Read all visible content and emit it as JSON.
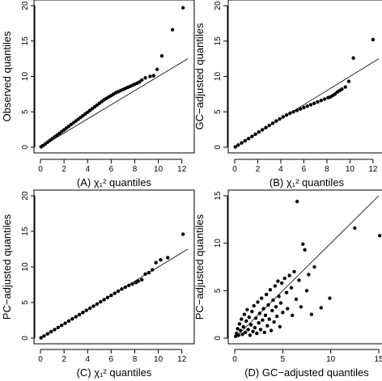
{
  "chart_data": [
    {
      "panel": "A",
      "type": "scatter",
      "xlabel": "(A) χ₁² quantiles",
      "ylabel": "Observed quantiles",
      "xlim": [
        0,
        12.5
      ],
      "ylim": [
        0,
        20
      ],
      "xticks": [
        0,
        2,
        4,
        6,
        8,
        10,
        12
      ],
      "yticks": [
        0,
        5,
        10,
        15,
        20
      ],
      "reference_line": {
        "slope": 1,
        "intercept": 0
      },
      "points": [
        [
          0.05,
          0.06
        ],
        [
          0.2,
          0.22
        ],
        [
          0.4,
          0.45
        ],
        [
          0.6,
          0.7
        ],
        [
          0.8,
          0.95
        ],
        [
          1,
          1.2
        ],
        [
          1.2,
          1.45
        ],
        [
          1.4,
          1.7
        ],
        [
          1.6,
          1.95
        ],
        [
          1.8,
          2.2
        ],
        [
          2,
          2.45
        ],
        [
          2.2,
          2.7
        ],
        [
          2.4,
          2.95
        ],
        [
          2.6,
          3.2
        ],
        [
          2.8,
          3.45
        ],
        [
          3,
          3.7
        ],
        [
          3.2,
          3.95
        ],
        [
          3.4,
          4.2
        ],
        [
          3.6,
          4.45
        ],
        [
          3.8,
          4.7
        ],
        [
          4,
          4.95
        ],
        [
          4.2,
          5.2
        ],
        [
          4.4,
          5.45
        ],
        [
          4.6,
          5.7
        ],
        [
          4.8,
          5.95
        ],
        [
          5,
          6.2
        ],
        [
          5.2,
          6.45
        ],
        [
          5.4,
          6.7
        ],
        [
          5.6,
          6.9
        ],
        [
          5.8,
          7.1
        ],
        [
          6,
          7.3
        ],
        [
          6.2,
          7.5
        ],
        [
          6.4,
          7.7
        ],
        [
          6.6,
          7.85
        ],
        [
          6.8,
          8
        ],
        [
          7,
          8.15
        ],
        [
          7.2,
          8.3
        ],
        [
          7.4,
          8.45
        ],
        [
          7.6,
          8.6
        ],
        [
          7.8,
          8.75
        ],
        [
          8,
          8.9
        ],
        [
          8.2,
          9.05
        ],
        [
          8.4,
          9.2
        ],
        [
          8.6,
          9.5
        ],
        [
          8.9,
          9.8
        ],
        [
          9.3,
          10
        ],
        [
          9.6,
          10.1
        ],
        [
          9.9,
          11
        ],
        [
          10.3,
          12.9
        ],
        [
          11.2,
          16.6
        ],
        [
          12.1,
          19.7
        ]
      ]
    },
    {
      "panel": "B",
      "type": "scatter",
      "xlabel": "(B) χ₁² quantiles",
      "ylabel": "GC−adjusted quantiles",
      "xlim": [
        0,
        12.5
      ],
      "ylim": [
        0,
        20
      ],
      "xticks": [
        0,
        2,
        4,
        6,
        8,
        10,
        12
      ],
      "yticks": [
        0,
        5,
        10,
        15,
        20
      ],
      "reference_line": {
        "slope": 1,
        "intercept": 0
      },
      "points": [
        [
          0.05,
          0.05
        ],
        [
          0.3,
          0.3
        ],
        [
          0.6,
          0.6
        ],
        [
          0.9,
          0.92
        ],
        [
          1.2,
          1.22
        ],
        [
          1.5,
          1.53
        ],
        [
          1.8,
          1.84
        ],
        [
          2.1,
          2.15
        ],
        [
          2.4,
          2.46
        ],
        [
          2.7,
          2.77
        ],
        [
          3,
          3.08
        ],
        [
          3.3,
          3.39
        ],
        [
          3.6,
          3.7
        ],
        [
          3.9,
          4
        ],
        [
          4.2,
          4.3
        ],
        [
          4.5,
          4.55
        ],
        [
          4.8,
          4.8
        ],
        [
          5.1,
          5
        ],
        [
          5.4,
          5.2
        ],
        [
          5.7,
          5.4
        ],
        [
          6,
          5.6
        ],
        [
          6.3,
          5.8
        ],
        [
          6.6,
          6
        ],
        [
          6.9,
          6.2
        ],
        [
          7.2,
          6.4
        ],
        [
          7.5,
          6.6
        ],
        [
          7.8,
          6.8
        ],
        [
          8.1,
          7
        ],
        [
          8.3,
          7.1
        ],
        [
          8.5,
          7.3
        ],
        [
          8.7,
          7.5
        ],
        [
          8.9,
          7.8
        ],
        [
          9.1,
          8
        ],
        [
          9.3,
          8.2
        ],
        [
          9.6,
          8.5
        ],
        [
          9.9,
          9.3
        ],
        [
          10.3,
          12.6
        ],
        [
          12,
          15.2
        ]
      ]
    },
    {
      "panel": "C",
      "type": "scatter",
      "xlabel": "(C) χ₁² quantiles",
      "ylabel": "PC−adjusted quantiles",
      "xlim": [
        0,
        12.5
      ],
      "ylim": [
        0,
        20
      ],
      "xticks": [
        0,
        2,
        4,
        6,
        8,
        10,
        12
      ],
      "yticks": [
        0,
        5,
        10,
        15,
        20
      ],
      "reference_line": {
        "slope": 1,
        "intercept": 0
      },
      "points": [
        [
          0.05,
          0.05
        ],
        [
          0.3,
          0.3
        ],
        [
          0.6,
          0.6
        ],
        [
          0.9,
          0.9
        ],
        [
          1.2,
          1.2
        ],
        [
          1.5,
          1.5
        ],
        [
          1.8,
          1.8
        ],
        [
          2.1,
          2.1
        ],
        [
          2.4,
          2.4
        ],
        [
          2.7,
          2.7
        ],
        [
          3,
          3
        ],
        [
          3.3,
          3.3
        ],
        [
          3.6,
          3.6
        ],
        [
          3.9,
          3.9
        ],
        [
          4.2,
          4.2
        ],
        [
          4.5,
          4.5
        ],
        [
          4.8,
          4.8
        ],
        [
          5.1,
          5.1
        ],
        [
          5.4,
          5.4
        ],
        [
          5.7,
          5.7
        ],
        [
          6,
          6
        ],
        [
          6.3,
          6.3
        ],
        [
          6.6,
          6.6
        ],
        [
          6.9,
          6.9
        ],
        [
          7.2,
          7.15
        ],
        [
          7.5,
          7.4
        ],
        [
          7.8,
          7.6
        ],
        [
          8.1,
          7.8
        ],
        [
          8.3,
          8
        ],
        [
          8.6,
          8.2
        ],
        [
          8.9,
          9
        ],
        [
          9.2,
          9.2
        ],
        [
          9.5,
          9.6
        ],
        [
          9.8,
          10.6
        ],
        [
          10.2,
          11
        ],
        [
          10.8,
          11.3
        ],
        [
          12.1,
          14.6
        ]
      ]
    },
    {
      "panel": "D",
      "type": "scatter",
      "xlabel": "(D) GC−adjusted quantiles",
      "ylabel": "PC−adjusted quantiles",
      "xlim": [
        0,
        15
      ],
      "ylim": [
        0,
        15
      ],
      "xticks": [
        0,
        5,
        10,
        15
      ],
      "yticks": [
        0,
        5,
        10,
        15
      ],
      "reference_line": {
        "slope": 1,
        "intercept": 0
      },
      "points": [
        [
          0.1,
          0.2
        ],
        [
          0.2,
          0.5
        ],
        [
          0.3,
          1
        ],
        [
          0.4,
          0.3
        ],
        [
          0.5,
          1.5
        ],
        [
          0.6,
          0.8
        ],
        [
          0.7,
          2
        ],
        [
          0.8,
          0.4
        ],
        [
          0.9,
          1.2
        ],
        [
          1,
          2.5
        ],
        [
          1.1,
          0.6
        ],
        [
          1.2,
          1.8
        ],
        [
          1.3,
          3
        ],
        [
          1.4,
          0.9
        ],
        [
          1.5,
          2.2
        ],
        [
          1.6,
          0.3
        ],
        [
          1.7,
          1.4
        ],
        [
          1.8,
          2.8
        ],
        [
          1.9,
          0.7
        ],
        [
          2,
          3.4
        ],
        [
          2.1,
          1.1
        ],
        [
          2.2,
          2.1
        ],
        [
          2.3,
          0.5
        ],
        [
          2.4,
          3.8
        ],
        [
          2.5,
          1.6
        ],
        [
          2.6,
          2.6
        ],
        [
          2.7,
          0.9
        ],
        [
          2.8,
          4.2
        ],
        [
          2.9,
          1.9
        ],
        [
          3,
          3.1
        ],
        [
          3.1,
          0.6
        ],
        [
          3.2,
          2.4
        ],
        [
          3.3,
          4.6
        ],
        [
          3.4,
          1.3
        ],
        [
          3.5,
          3.5
        ],
        [
          3.6,
          2
        ],
        [
          3.7,
          5.1
        ],
        [
          3.8,
          0.8
        ],
        [
          3.9,
          2.9
        ],
        [
          4,
          4
        ],
        [
          4.1,
          1.7
        ],
        [
          4.2,
          5.5
        ],
        [
          4.3,
          3.3
        ],
        [
          4.4,
          2.3
        ],
        [
          4.5,
          6
        ],
        [
          4.6,
          4.4
        ],
        [
          4.7,
          1.2
        ],
        [
          4.8,
          3.7
        ],
        [
          4.9,
          5.8
        ],
        [
          5,
          2.7
        ],
        [
          5.2,
          6.3
        ],
        [
          5.4,
          4.8
        ],
        [
          5.5,
          3.1
        ],
        [
          5.7,
          6.6
        ],
        [
          5.9,
          5.3
        ],
        [
          6,
          2.4
        ],
        [
          6.2,
          7
        ],
        [
          6.4,
          4.1
        ],
        [
          6.5,
          14.4
        ],
        [
          6.7,
          6.1
        ],
        [
          6.9,
          3.3
        ],
        [
          7.1,
          9.9
        ],
        [
          7.3,
          9.3
        ],
        [
          7.5,
          5
        ],
        [
          7.7,
          6.7
        ],
        [
          8,
          2.5
        ],
        [
          8.3,
          7.5
        ],
        [
          9,
          3.2
        ],
        [
          9.9,
          4.2
        ],
        [
          12.5,
          11.6
        ],
        [
          15.1,
          10.8
        ]
      ]
    }
  ]
}
